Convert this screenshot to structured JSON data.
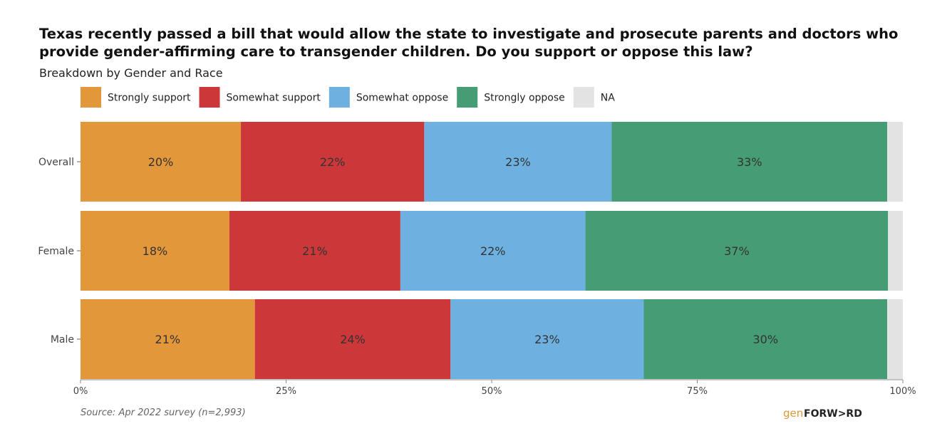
{
  "chart_data": {
    "type": "bar",
    "orientation": "horizontal",
    "stacked": true,
    "title_lines": [
      "Texas recently passed a bill that would allow the state to investigate and prosecute parents and doctors who",
      "provide gender-affirming care to transgender children. Do you support or oppose this law?"
    ],
    "subtitle": "Breakdown by Gender and Race",
    "categories": [
      "Overall",
      "Female",
      "Male"
    ],
    "series": [
      {
        "name": "Strongly support",
        "color": "#E3973B",
        "values": [
          19.5,
          18.1,
          21.2
        ],
        "labels": [
          "20%",
          "18%",
          "21%"
        ]
      },
      {
        "name": "Somewhat support",
        "color": "#CC383A",
        "values": [
          22.3,
          20.8,
          23.8
        ],
        "labels": [
          "22%",
          "21%",
          "24%"
        ]
      },
      {
        "name": "Somewhat oppose",
        "color": "#6EB1E1",
        "values": [
          22.8,
          22.5,
          23.5
        ],
        "labels": [
          "23%",
          "22%",
          "23%"
        ]
      },
      {
        "name": "Strongly oppose",
        "color": "#469C74",
        "values": [
          33.5,
          36.8,
          29.6
        ],
        "labels": [
          "33%",
          "37%",
          "30%"
        ]
      },
      {
        "name": "NA",
        "color": "#E3E3E3",
        "values": [
          1.9,
          1.8,
          1.9
        ],
        "labels": [
          "",
          "",
          ""
        ]
      }
    ],
    "xlim": [
      0,
      100
    ],
    "x_ticks": [
      0,
      25,
      50,
      75,
      100
    ],
    "x_tick_labels": [
      "0%",
      "25%",
      "50%",
      "75%",
      "100%"
    ],
    "legend_position": "top-left",
    "grid": false
  },
  "source": "Source: Apr 2022 survey (n=2,993)",
  "logo": {
    "gen": "gen",
    "forward": "FORW>RD"
  }
}
